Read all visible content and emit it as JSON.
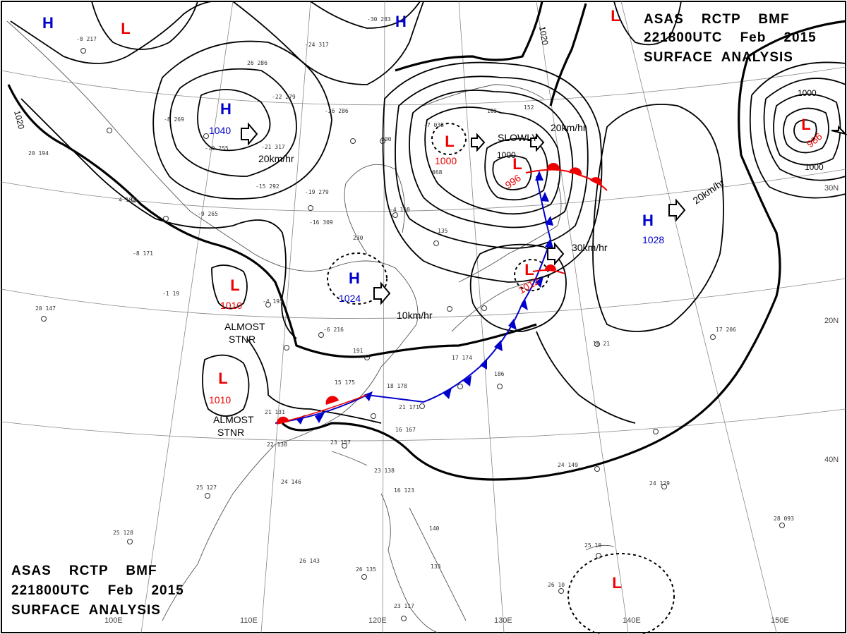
{
  "header": {
    "line1": "ASAS    RCTP    BMF",
    "line2": "221800UTC    Feb    2015",
    "line3": "SURFACE  ANALYSIS"
  },
  "footer": {
    "line1": "ASAS    RCTP    BMF",
    "line2": "221800UTC    Feb    2015",
    "line3": "SURFACE  ANALYSIS"
  },
  "pressure_centers": [
    {
      "type": "H",
      "value": "",
      "color": "#0000cc"
    },
    {
      "type": "L",
      "value": "",
      "color": "#ee0000"
    },
    {
      "type": "H",
      "value": "",
      "color": "#0000cc"
    },
    {
      "type": "L",
      "value": "",
      "color": "#ee0000"
    },
    {
      "type": "H",
      "value": "1040",
      "color": "#0000cc"
    },
    {
      "type": "L",
      "value": "1000",
      "color": "#ee0000"
    },
    {
      "type": "L",
      "value": "996",
      "color": "#ee0000"
    },
    {
      "type": "L",
      "value": "986",
      "color": "#ee0000"
    },
    {
      "type": "H",
      "value": "1028",
      "color": "#0000cc"
    },
    {
      "type": "H",
      "value": "1024",
      "color": "#0000cc"
    },
    {
      "type": "L",
      "value": "1010",
      "color": "#ee0000"
    },
    {
      "type": "L",
      "value": "1010",
      "color": "#ee0000"
    },
    {
      "type": "L",
      "value": "1012",
      "color": "#ee0000"
    },
    {
      "type": "L",
      "value": "",
      "color": "#ee0000"
    }
  ],
  "annotations": [
    "20km/hr",
    "SLOWLY",
    "20km/hr",
    "30km/hr",
    "20km/hr",
    "10km/hr",
    "ALMOST",
    "STNR",
    "ALMOST",
    "STNR"
  ],
  "isobar_labels": [
    "1020",
    "1020",
    "1000",
    "1000",
    "1000"
  ],
  "grid_labels": [
    "100E",
    "110E",
    "120E",
    "130E",
    "140E",
    "150E",
    "20N",
    "30N",
    "40N"
  ]
}
